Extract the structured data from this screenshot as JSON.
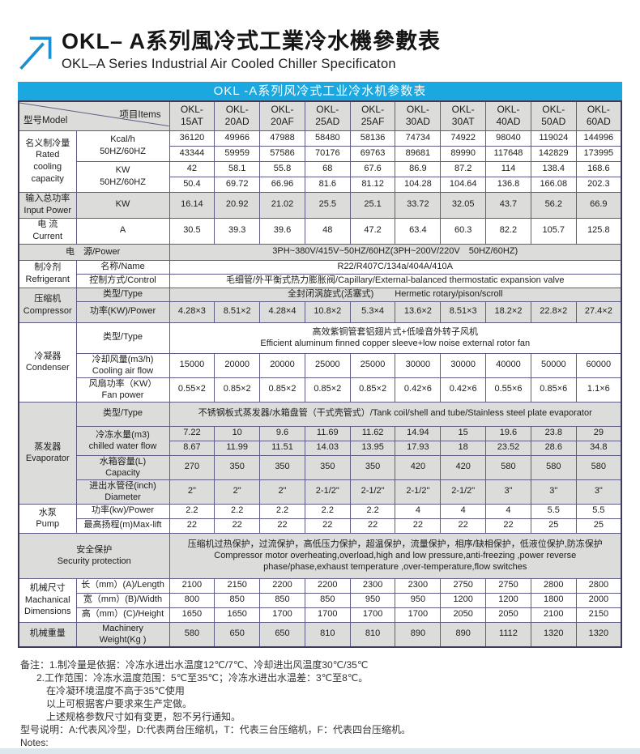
{
  "page": {
    "title_zh": "OKL– A系列風冷式工業冷水機參數表",
    "title_en": "OKL–A Series Industrial Air Cooled Chiller Specificaton",
    "banner": "OKL -A系列风冷式工业冷水机参数表",
    "colors": {
      "brand_blue": "#1BA7E0",
      "row_gray": "#dcdcda",
      "border_navy": "#5c5c84",
      "strip": "#dce7ed",
      "arrow_blue": "#1b8fd1"
    }
  },
  "head": {
    "model_label": "型号Model",
    "items_label": "项目Items",
    "models": [
      "OKL-15AT",
      "OKL-20AD",
      "OKL-20AF",
      "OKL-25AD",
      "OKL-25AF",
      "OKL-30AD",
      "OKL-30AT",
      "OKL-40AD",
      "OKL-50AD",
      "OKL-60AD"
    ]
  },
  "labels": {
    "rated": [
      "名义制冷量",
      "Rated",
      "cooling",
      "capacity"
    ],
    "kcal": [
      "Kcal/h",
      "50HZ/60HZ"
    ],
    "kw": [
      "KW",
      "50HZ/60HZ"
    ],
    "input": [
      "输入总功率",
      "Input Power"
    ],
    "input_unit": "KW",
    "current": [
      "电 流",
      "Current"
    ],
    "current_unit": "A",
    "power_zh": "电",
    "power_en": "源/Power",
    "refrigerant": [
      "制冷剂",
      "Refrigerant"
    ],
    "ref_name": "名称/Name",
    "ref_control": "控制方式/Control",
    "compressor": [
      "压缩机",
      "Compressor"
    ],
    "type": "类型/Type",
    "comp_power": "功率(KW)/Power",
    "condenser": [
      "冷凝器",
      "Condenser"
    ],
    "air_flow": [
      "冷却风量(m3/h)",
      "Cooling air flow"
    ],
    "fan_power": [
      "风扇功率（KW）",
      "Fan power"
    ],
    "evaporator": [
      "蒸发器",
      "Evaporator"
    ],
    "water_flow": [
      "冷冻水量(m3)",
      "chilled water flow"
    ],
    "tank": [
      "水箱容量(L)",
      "Capacity"
    ],
    "pipe": [
      "进出水管径(inch)",
      "Diameter"
    ],
    "pump": [
      "水泵",
      "Pump"
    ],
    "pump_power": "功率(kw)/Power",
    "max_lift": "最高扬程(m)Max-lift",
    "security": [
      "安全保护",
      "Security protection"
    ],
    "dims": [
      "机械尺寸",
      "Machanical",
      "Dimensions"
    ],
    "dim_l": "长（mm）(A)/Length",
    "dim_w": "宽（mm）(B)/Width",
    "dim_h": "高（mm）(C)/Height",
    "weight": "机械重量",
    "weight_item": [
      "Machinery",
      "Weight(Kg )"
    ]
  },
  "merged": {
    "power_supply": "3PH~380V/415V~50HZ/60HZ(3PH~200V/220V　50HZ/60HZ)",
    "ref_name": "R22/R407C/134a/404A/410A",
    "ref_control": "毛细管/外平衡式热力膨胀阀/Capillary/External-balanced thermostatic expansion valve",
    "comp_type": [
      "全封闭涡旋式(活塞式)",
      "Hermetic rotary/pison/scroll"
    ],
    "cond_type": [
      "高效紫铜管套铝翅片式+低噪音外转子风机",
      "Efficient aluminum finned copper sleeve+low noise external rotor fan"
    ],
    "evap_type": "不锈钢板式蒸发器/水箱盘管（干式壳管式）/Tank coil/shell and tube/Stainless steel plate evaporator",
    "security": [
      "压缩机过热保护，过流保护，高低压力保护，超温保护，流量保护，相序/缺相保护，低液位保护,防冻保护",
      "Compressor motor overheating,overload,high and low pressure,anti-freezing ,power reverse",
      "phase/phase,exhaust temperature ,over-temperature,flow switches"
    ]
  },
  "r": {
    "kcal50": [
      "36120",
      "49966",
      "47988",
      "58480",
      "58136",
      "74734",
      "74922",
      "98040",
      "119024",
      "144996"
    ],
    "kcal60": [
      "43344",
      "59959",
      "57586",
      "70176",
      "69763",
      "89681",
      "89990",
      "117648",
      "142829",
      "173995"
    ],
    "kw50": [
      "42",
      "58.1",
      "55.8",
      "68",
      "67.6",
      "86.9",
      "87.2",
      "114",
      "138.4",
      "168.6"
    ],
    "kw60": [
      "50.4",
      "69.72",
      "66.96",
      "81.6",
      "81.12",
      "104.28",
      "104.64",
      "136.8",
      "166.08",
      "202.3"
    ],
    "input_kw": [
      "16.14",
      "20.92",
      "21.02",
      "25.5",
      "25.1",
      "33.72",
      "32.05",
      "43.7",
      "56.2",
      "66.9"
    ],
    "current": [
      "30.5",
      "39.3",
      "39.6",
      "48",
      "47.2",
      "63.4",
      "60.3",
      "82.2",
      "105.7",
      "125.8"
    ],
    "comp_power": [
      "4.28×3",
      "8.51×2",
      "4.28×4",
      "10.8×2",
      "5.3×4",
      "13.6×2",
      "8.51×3",
      "18.2×2",
      "22.8×2",
      "27.4×2"
    ],
    "air_flow": [
      "15000",
      "20000",
      "20000",
      "25000",
      "25000",
      "30000",
      "30000",
      "40000",
      "50000",
      "60000"
    ],
    "fan_power": [
      "0.55×2",
      "0.85×2",
      "0.85×2",
      "0.85×2",
      "0.85×2",
      "0.42×6",
      "0.42×6",
      "0.55×6",
      "0.85×6",
      "1.1×6"
    ],
    "water_flow50": [
      "7.22",
      "10",
      "9.6",
      "11.69",
      "11.62",
      "14.94",
      "15",
      "19.6",
      "23.8",
      "29"
    ],
    "water_flow60": [
      "8.67",
      "11.99",
      "11.51",
      "14.03",
      "13.95",
      "17.93",
      "18",
      "23.52",
      "28.6",
      "34.8"
    ],
    "tank": [
      "270",
      "350",
      "350",
      "350",
      "350",
      "420",
      "420",
      "580",
      "580",
      "580"
    ],
    "pipe": [
      "2\"",
      "2\"",
      "2\"",
      "2-1/2\"",
      "2-1/2\"",
      "2-1/2\"",
      "2-1/2\"",
      "3\"",
      "3\"",
      "3\""
    ],
    "pump_power": [
      "2.2",
      "2.2",
      "2.2",
      "2.2",
      "2.2",
      "4",
      "4",
      "4",
      "5.5",
      "5.5"
    ],
    "max_lift": [
      "22",
      "22",
      "22",
      "22",
      "22",
      "22",
      "22",
      "22",
      "25",
      "25"
    ],
    "dim_l": [
      "2100",
      "2150",
      "2200",
      "2200",
      "2300",
      "2300",
      "2750",
      "2750",
      "2800",
      "2800"
    ],
    "dim_w": [
      "800",
      "850",
      "850",
      "850",
      "950",
      "950",
      "1200",
      "1200",
      "1800",
      "2000"
    ],
    "dim_h": [
      "1650",
      "1650",
      "1700",
      "1700",
      "1700",
      "1700",
      "2050",
      "2050",
      "2100",
      "2150"
    ],
    "weight": [
      "580",
      "650",
      "650",
      "810",
      "810",
      "890",
      "890",
      "1112",
      "1320",
      "1320"
    ]
  },
  "notes": [
    "备注：1.制冷量是依据：冷冻水进出水温度12℃/7℃、冷却进出风温度30℃/35℃",
    "2.工作范围：冷冻水温度范围：5℃至35℃；冷冻水进出水温差：3℃至8℃。",
    "在冷凝环境温度不高于35℃使用",
    "以上可根据客户要求来生产定做。",
    "上述规格参数尺寸如有变更，恕不另行通知。",
    "型号说明：A:代表风冷型，D:代表两台压缩机，T：代表三台压缩机，F：代表四台压缩机。",
    "Notes:"
  ]
}
